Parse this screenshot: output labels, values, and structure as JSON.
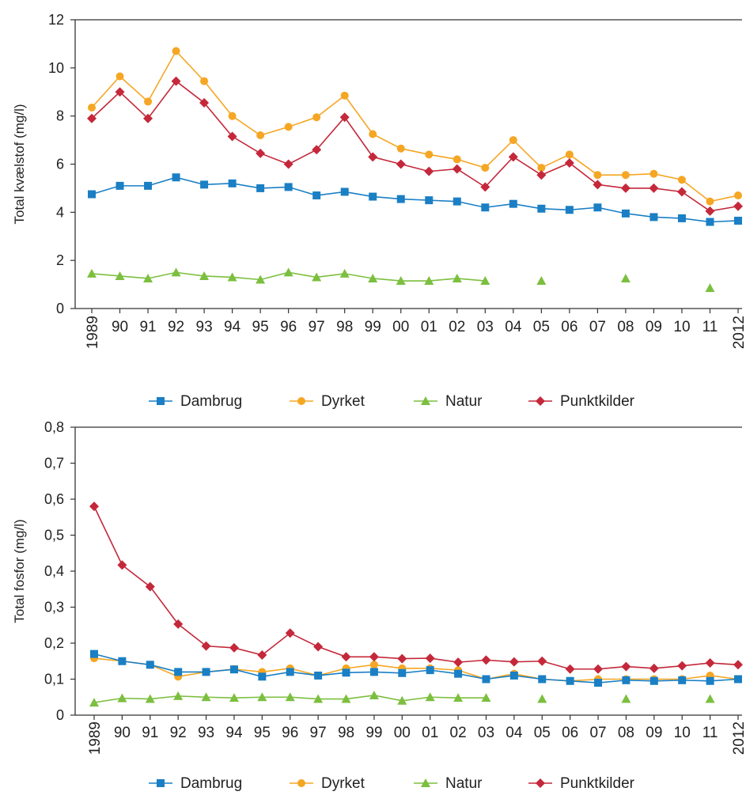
{
  "colors": {
    "Dambrug": "#1a7fc4",
    "Dyrket": "#f5a623",
    "Natur": "#7cbf3f",
    "Punktkilder": "#c4283a",
    "axis": "#333333"
  },
  "chart_data": [
    {
      "type": "line",
      "ylabel": "Total kvælstof (mg/l)",
      "ylim": [
        0,
        12
      ],
      "yticks": [
        0,
        2,
        4,
        6,
        8,
        10
      ],
      "ytick_labels": [
        "0",
        "2",
        "4",
        "6",
        "8",
        "10",
        "12"
      ],
      "x_labels": [
        "1989",
        "90",
        "91",
        "92",
        "93",
        "94",
        "95",
        "96",
        "97",
        "98",
        "99",
        "00",
        "01",
        "02",
        "03",
        "04",
        "05",
        "06",
        "07",
        "08",
        "09",
        "10",
        "11",
        "2012"
      ],
      "legend": [
        "Dambrug",
        "Dyrket",
        "Natur",
        "Punktkilder"
      ],
      "series": [
        {
          "name": "Dambrug",
          "marker": "square",
          "values": [
            4.75,
            5.1,
            5.1,
            5.45,
            5.15,
            5.2,
            5.0,
            5.05,
            4.7,
            4.85,
            4.65,
            4.55,
            4.5,
            4.45,
            4.2,
            4.35,
            4.15,
            4.1,
            4.2,
            3.95,
            3.8,
            3.75,
            3.6,
            3.65
          ]
        },
        {
          "name": "Dyrket",
          "marker": "circle",
          "values": [
            8.35,
            9.65,
            8.6,
            10.7,
            9.45,
            8.0,
            7.2,
            7.55,
            7.95,
            8.85,
            7.25,
            6.65,
            6.4,
            6.2,
            5.85,
            7.0,
            5.85,
            6.4,
            5.55,
            5.55,
            5.6,
            5.35,
            4.45,
            4.7
          ]
        },
        {
          "name": "Natur",
          "marker": "triangle",
          "values": [
            1.45,
            1.35,
            1.25,
            1.5,
            1.35,
            1.3,
            1.2,
            1.5,
            1.3,
            1.45,
            1.25,
            1.15,
            1.15,
            1.25,
            1.15,
            null,
            1.15,
            null,
            null,
            1.25,
            null,
            null,
            0.85,
            null
          ]
        },
        {
          "name": "Punktkilder",
          "marker": "diamond",
          "values": [
            7.9,
            9.0,
            7.9,
            9.45,
            8.55,
            7.15,
            6.45,
            6.0,
            6.6,
            7.95,
            6.3,
            6.0,
            5.7,
            5.8,
            5.05,
            6.3,
            5.55,
            6.05,
            5.15,
            5.0,
            5.0,
            4.85,
            4.05,
            4.25
          ]
        }
      ]
    },
    {
      "type": "line",
      "ylabel": "Total fosfor (mg/l)",
      "ylim": [
        0,
        0.8
      ],
      "yticks": [
        0,
        0.1,
        0.2,
        0.3,
        0.4,
        0.5,
        0.6,
        0.7
      ],
      "ytick_labels": [
        "0",
        "0,1",
        "0,2",
        "0,3",
        "0,4",
        "0,5",
        "0,6",
        "0,7",
        "0,8"
      ],
      "x_labels": [
        "1989",
        "90",
        "91",
        "92",
        "93",
        "94",
        "95",
        "96",
        "97",
        "98",
        "99",
        "00",
        "01",
        "02",
        "03",
        "04",
        "05",
        "06",
        "07",
        "08",
        "09",
        "10",
        "11",
        "2012"
      ],
      "legend": [
        "Dambrug",
        "Dyrket",
        "Natur",
        "Punktkilder"
      ],
      "series": [
        {
          "name": "Dambrug",
          "marker": "square",
          "values": [
            0.17,
            0.15,
            0.14,
            0.12,
            0.12,
            0.127,
            0.107,
            0.12,
            0.11,
            0.118,
            0.12,
            0.117,
            0.125,
            0.115,
            0.1,
            0.11,
            0.1,
            0.095,
            0.09,
            0.097,
            0.095,
            0.097,
            0.095,
            0.1
          ]
        },
        {
          "name": "Dyrket",
          "marker": "circle",
          "values": [
            0.158,
            0.15,
            0.14,
            0.107,
            0.12,
            0.128,
            0.12,
            0.13,
            0.11,
            0.13,
            0.14,
            0.13,
            0.13,
            0.125,
            0.1,
            0.115,
            0.1,
            0.095,
            0.1,
            0.1,
            0.1,
            0.1,
            0.11,
            0.1
          ]
        },
        {
          "name": "Natur",
          "marker": "triangle",
          "values": [
            0.035,
            0.047,
            0.045,
            0.053,
            0.05,
            0.048,
            0.05,
            0.05,
            0.045,
            0.045,
            0.055,
            0.04,
            0.05,
            0.048,
            0.048,
            null,
            0.045,
            null,
            null,
            0.045,
            null,
            null,
            0.045,
            null
          ]
        },
        {
          "name": "Punktkilder",
          "marker": "diamond",
          "values": [
            0.58,
            0.417,
            0.357,
            0.253,
            0.192,
            0.187,
            0.167,
            0.228,
            0.19,
            0.162,
            0.162,
            0.157,
            0.158,
            0.147,
            0.153,
            0.148,
            0.15,
            0.128,
            0.128,
            0.135,
            0.13,
            0.137,
            0.145,
            0.14
          ]
        }
      ]
    }
  ]
}
